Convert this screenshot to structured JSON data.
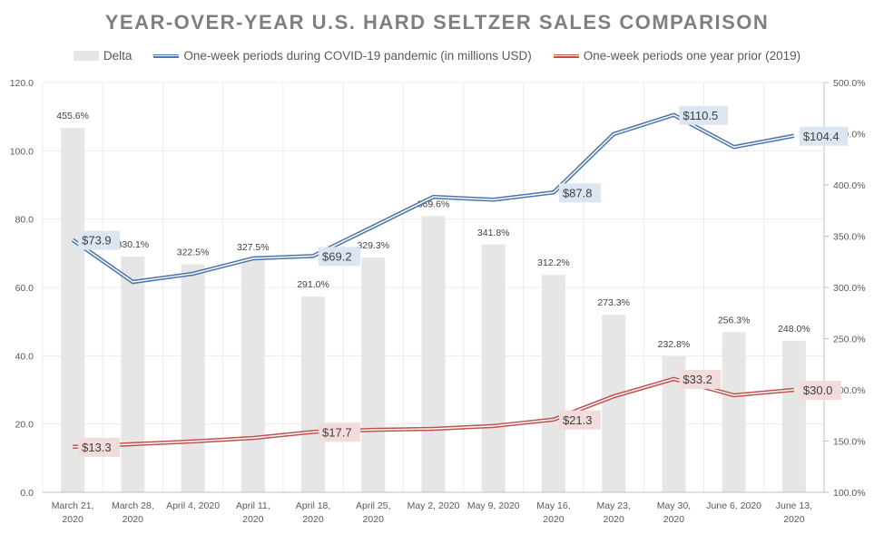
{
  "chart_data": {
    "type": "bar+line",
    "title": "YEAR-OVER-YEAR U.S. HARD SELTZER SALES COMPARISON",
    "legend_position": "top",
    "categories": [
      [
        "March 21,",
        "2020"
      ],
      [
        "March 28,",
        "2020"
      ],
      [
        "April 4, 2020"
      ],
      [
        "April 11,",
        "2020"
      ],
      [
        "April 18,",
        "2020"
      ],
      [
        "April 25,",
        "2020"
      ],
      [
        "May 2, 2020"
      ],
      [
        "May 9, 2020"
      ],
      [
        "May 16,",
        "2020"
      ],
      [
        "May 23,",
        "2020"
      ],
      [
        "May 30,",
        "2020"
      ],
      [
        "June 6, 2020"
      ],
      [
        "June 13,",
        "2020"
      ]
    ],
    "left_axis": {
      "min": 0,
      "max": 120,
      "step": 20,
      "tick_labels": [
        "0.0",
        "20.0",
        "40.0",
        "60.0",
        "80.0",
        "100.0",
        "120.0"
      ]
    },
    "right_axis": {
      "min": 100,
      "max": 500,
      "step": 50,
      "tick_labels": [
        "100.0%",
        "150.0%",
        "200.0%",
        "250.0%",
        "300.0%",
        "350.0%",
        "400.0%",
        "450.0%",
        "500.0%"
      ]
    },
    "grid": true,
    "series": [
      {
        "name": "Delta",
        "type": "bar",
        "axis": "right",
        "color": "#e7e6e6",
        "values": [
          455.6,
          330.1,
          322.5,
          327.5,
          291.0,
          329.3,
          369.6,
          341.8,
          312.2,
          273.3,
          232.8,
          256.3,
          248.0
        ],
        "labels": [
          "455.6%",
          "330.1%",
          "322.5%",
          "327.5%",
          "291.0%",
          "329.3%",
          "369.6%",
          "341.8%",
          "312.2%",
          "273.3%",
          "232.8%",
          "256.3%",
          "248.0%"
        ]
      },
      {
        "name": "One-week periods during COVID-19 pandemic (in millions USD)",
        "type": "line",
        "axis": "left",
        "color": "#4a74aa",
        "label_bg": "#dce6f2",
        "values": [
          73.9,
          61.6,
          64.0,
          68.5,
          69.2,
          77.8,
          86.5,
          85.7,
          87.8,
          104.9,
          110.5,
          101.1,
          104.4
        ],
        "labeled_points": [
          {
            "index": 0,
            "text": "$73.9"
          },
          {
            "index": 4,
            "text": "$69.2"
          },
          {
            "index": 8,
            "text": "$87.8"
          },
          {
            "index": 10,
            "text": "$110.5"
          },
          {
            "index": 12,
            "text": "$104.4"
          }
        ]
      },
      {
        "name": "One-week periods one year prior (2019)",
        "type": "line",
        "axis": "left",
        "color": "#c0504d",
        "label_bg": "#f2dcdb",
        "values": [
          13.3,
          14.1,
          14.9,
          15.9,
          17.7,
          18.3,
          18.6,
          19.4,
          21.3,
          28.1,
          33.2,
          28.4,
          30.0
        ],
        "labeled_points": [
          {
            "index": 0,
            "text": "$13.3"
          },
          {
            "index": 4,
            "text": "$17.7"
          },
          {
            "index": 8,
            "text": "$21.3"
          },
          {
            "index": 10,
            "text": "$33.2"
          },
          {
            "index": 12,
            "text": "$30.0"
          }
        ]
      }
    ]
  }
}
